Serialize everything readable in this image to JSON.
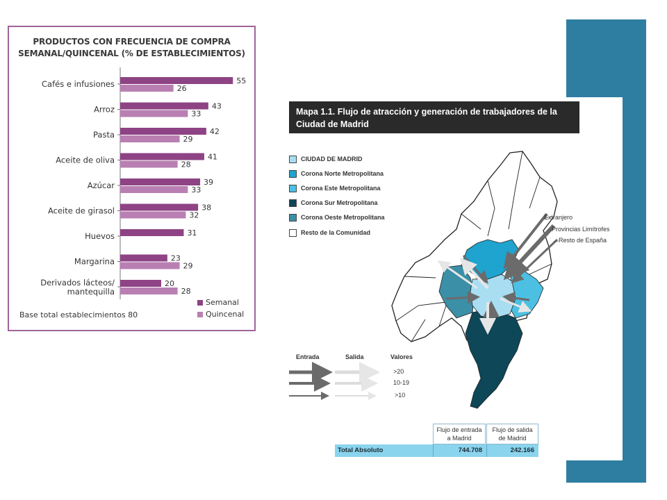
{
  "chart": {
    "title_line1": "PRODUCTOS CON FRECUENCIA DE COMPRA",
    "title_line2": "SEMANAL/QUINCENAL (% DE ESTABLECIMIENTOS)",
    "base_text": "Base total establecimientos 80",
    "colors": {
      "semanal": "#8e4385",
      "quincenal": "#b97fb2"
    }
  },
  "chart_data": {
    "type": "bar",
    "orientation": "horizontal",
    "categories": [
      "Cafés e infusiones",
      "Arroz",
      "Pasta",
      "Aceite de oliva",
      "Azúcar",
      "Aceite de girasol",
      "Huevos",
      "Margarina",
      "Derivados lácteos/ mantequilla"
    ],
    "category_lines": [
      [
        "Cafés e infusiones"
      ],
      [
        "Arroz"
      ],
      [
        "Pasta"
      ],
      [
        "Aceite de oliva"
      ],
      [
        "Azúcar"
      ],
      [
        "Aceite de girasol"
      ],
      [
        "Huevos"
      ],
      [
        "Margarina"
      ],
      [
        "Derivados lácteos/",
        "mantequilla"
      ]
    ],
    "series": [
      {
        "name": "Semanal",
        "values": [
          55,
          43,
          42,
          41,
          39,
          38,
          31,
          23,
          20
        ]
      },
      {
        "name": "Quincenal",
        "values": [
          26,
          33,
          29,
          28,
          33,
          32,
          null,
          29,
          28
        ]
      }
    ],
    "xlim": [
      0,
      60
    ],
    "legend": "bottom-right"
  },
  "map": {
    "title_line1": "Mapa 1.1. Flujo de atracción y generación de trabajadores de la",
    "title_line2": "Ciudad de Madrid",
    "legend": [
      {
        "label": "CIUDAD DE MADRID",
        "color": "#a9def2"
      },
      {
        "label": "Corona Norte Metropolitana",
        "color": "#1fa3cf"
      },
      {
        "label": "Corona Este Metropolitana",
        "color": "#4cc0e3"
      },
      {
        "label": "Corona Sur Metropolitana",
        "color": "#0e4757"
      },
      {
        "label": "Corona Oeste Metropolitana",
        "color": "#3b8fa6"
      },
      {
        "label": "Resto de la Comunidad",
        "color": "#ffffff"
      }
    ],
    "external_labels": [
      "Extranjero",
      "Provincias Limítrofes",
      "Resto de España"
    ],
    "flow_legend": {
      "entrada": "Entrada",
      "salida": "Salida",
      "valores": "Valores",
      "values": [
        ">20",
        "10-19",
        ">10"
      ]
    },
    "table": {
      "col1_header_line1": "Flujo de entrada",
      "col1_header_line2": "a Madrid",
      "col2_header_line1": "Flujo de salida",
      "col2_header_line2": "de Madrid",
      "row_label": "Total Absoluto",
      "entrada_value": "744.708",
      "salida_value": "242.166"
    }
  }
}
